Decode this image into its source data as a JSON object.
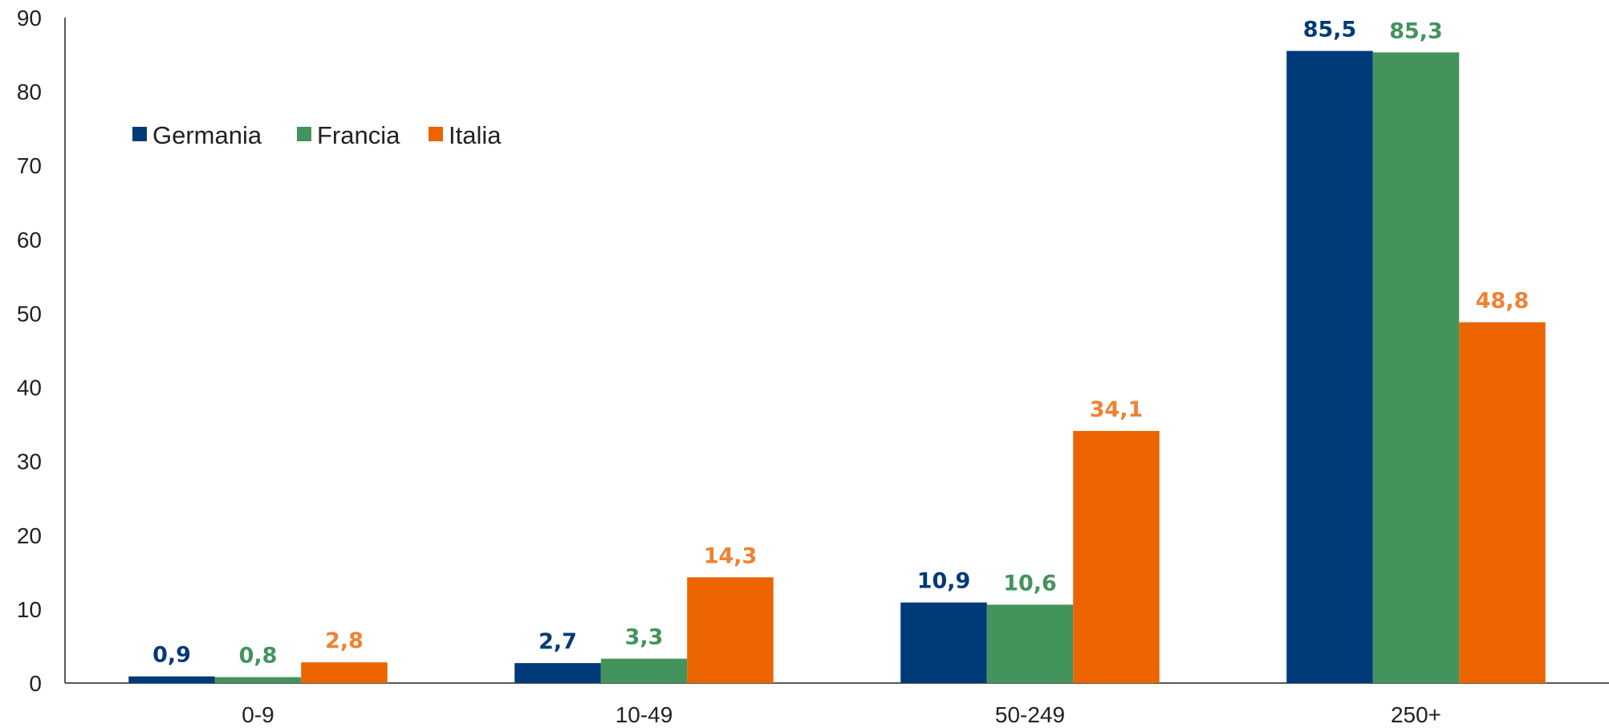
{
  "chart_data": {
    "type": "bar",
    "categories": [
      "0-9",
      "10-49",
      "50-249",
      "250+"
    ],
    "series": [
      {
        "name": "Germania",
        "color": "#003A78",
        "label_color": "#003A78",
        "values": [
          0.9,
          2.7,
          10.9,
          85.5
        ],
        "labels": [
          "0,9",
          "2,7",
          "10,9",
          "85,5"
        ]
      },
      {
        "name": "Francia",
        "color": "#43935C",
        "label_color": "#43935C",
        "values": [
          0.8,
          3.3,
          10.6,
          85.3
        ],
        "labels": [
          "0,8",
          "3,3",
          "10,6",
          "85,3"
        ]
      },
      {
        "name": "Italia",
        "color": "#EB6400",
        "label_color": "#EE8233",
        "values": [
          2.8,
          14.3,
          34.1,
          48.8
        ],
        "labels": [
          "2,8",
          "14,3",
          "34,1",
          "48,8"
        ]
      }
    ],
    "ylim": [
      0,
      90
    ],
    "yticks": [
      "0",
      "10",
      "20",
      "30",
      "40",
      "50",
      "60",
      "70",
      "80",
      "90"
    ],
    "title": "",
    "xlabel": "",
    "ylabel": "",
    "grid": false,
    "legend_position": "top-left"
  }
}
